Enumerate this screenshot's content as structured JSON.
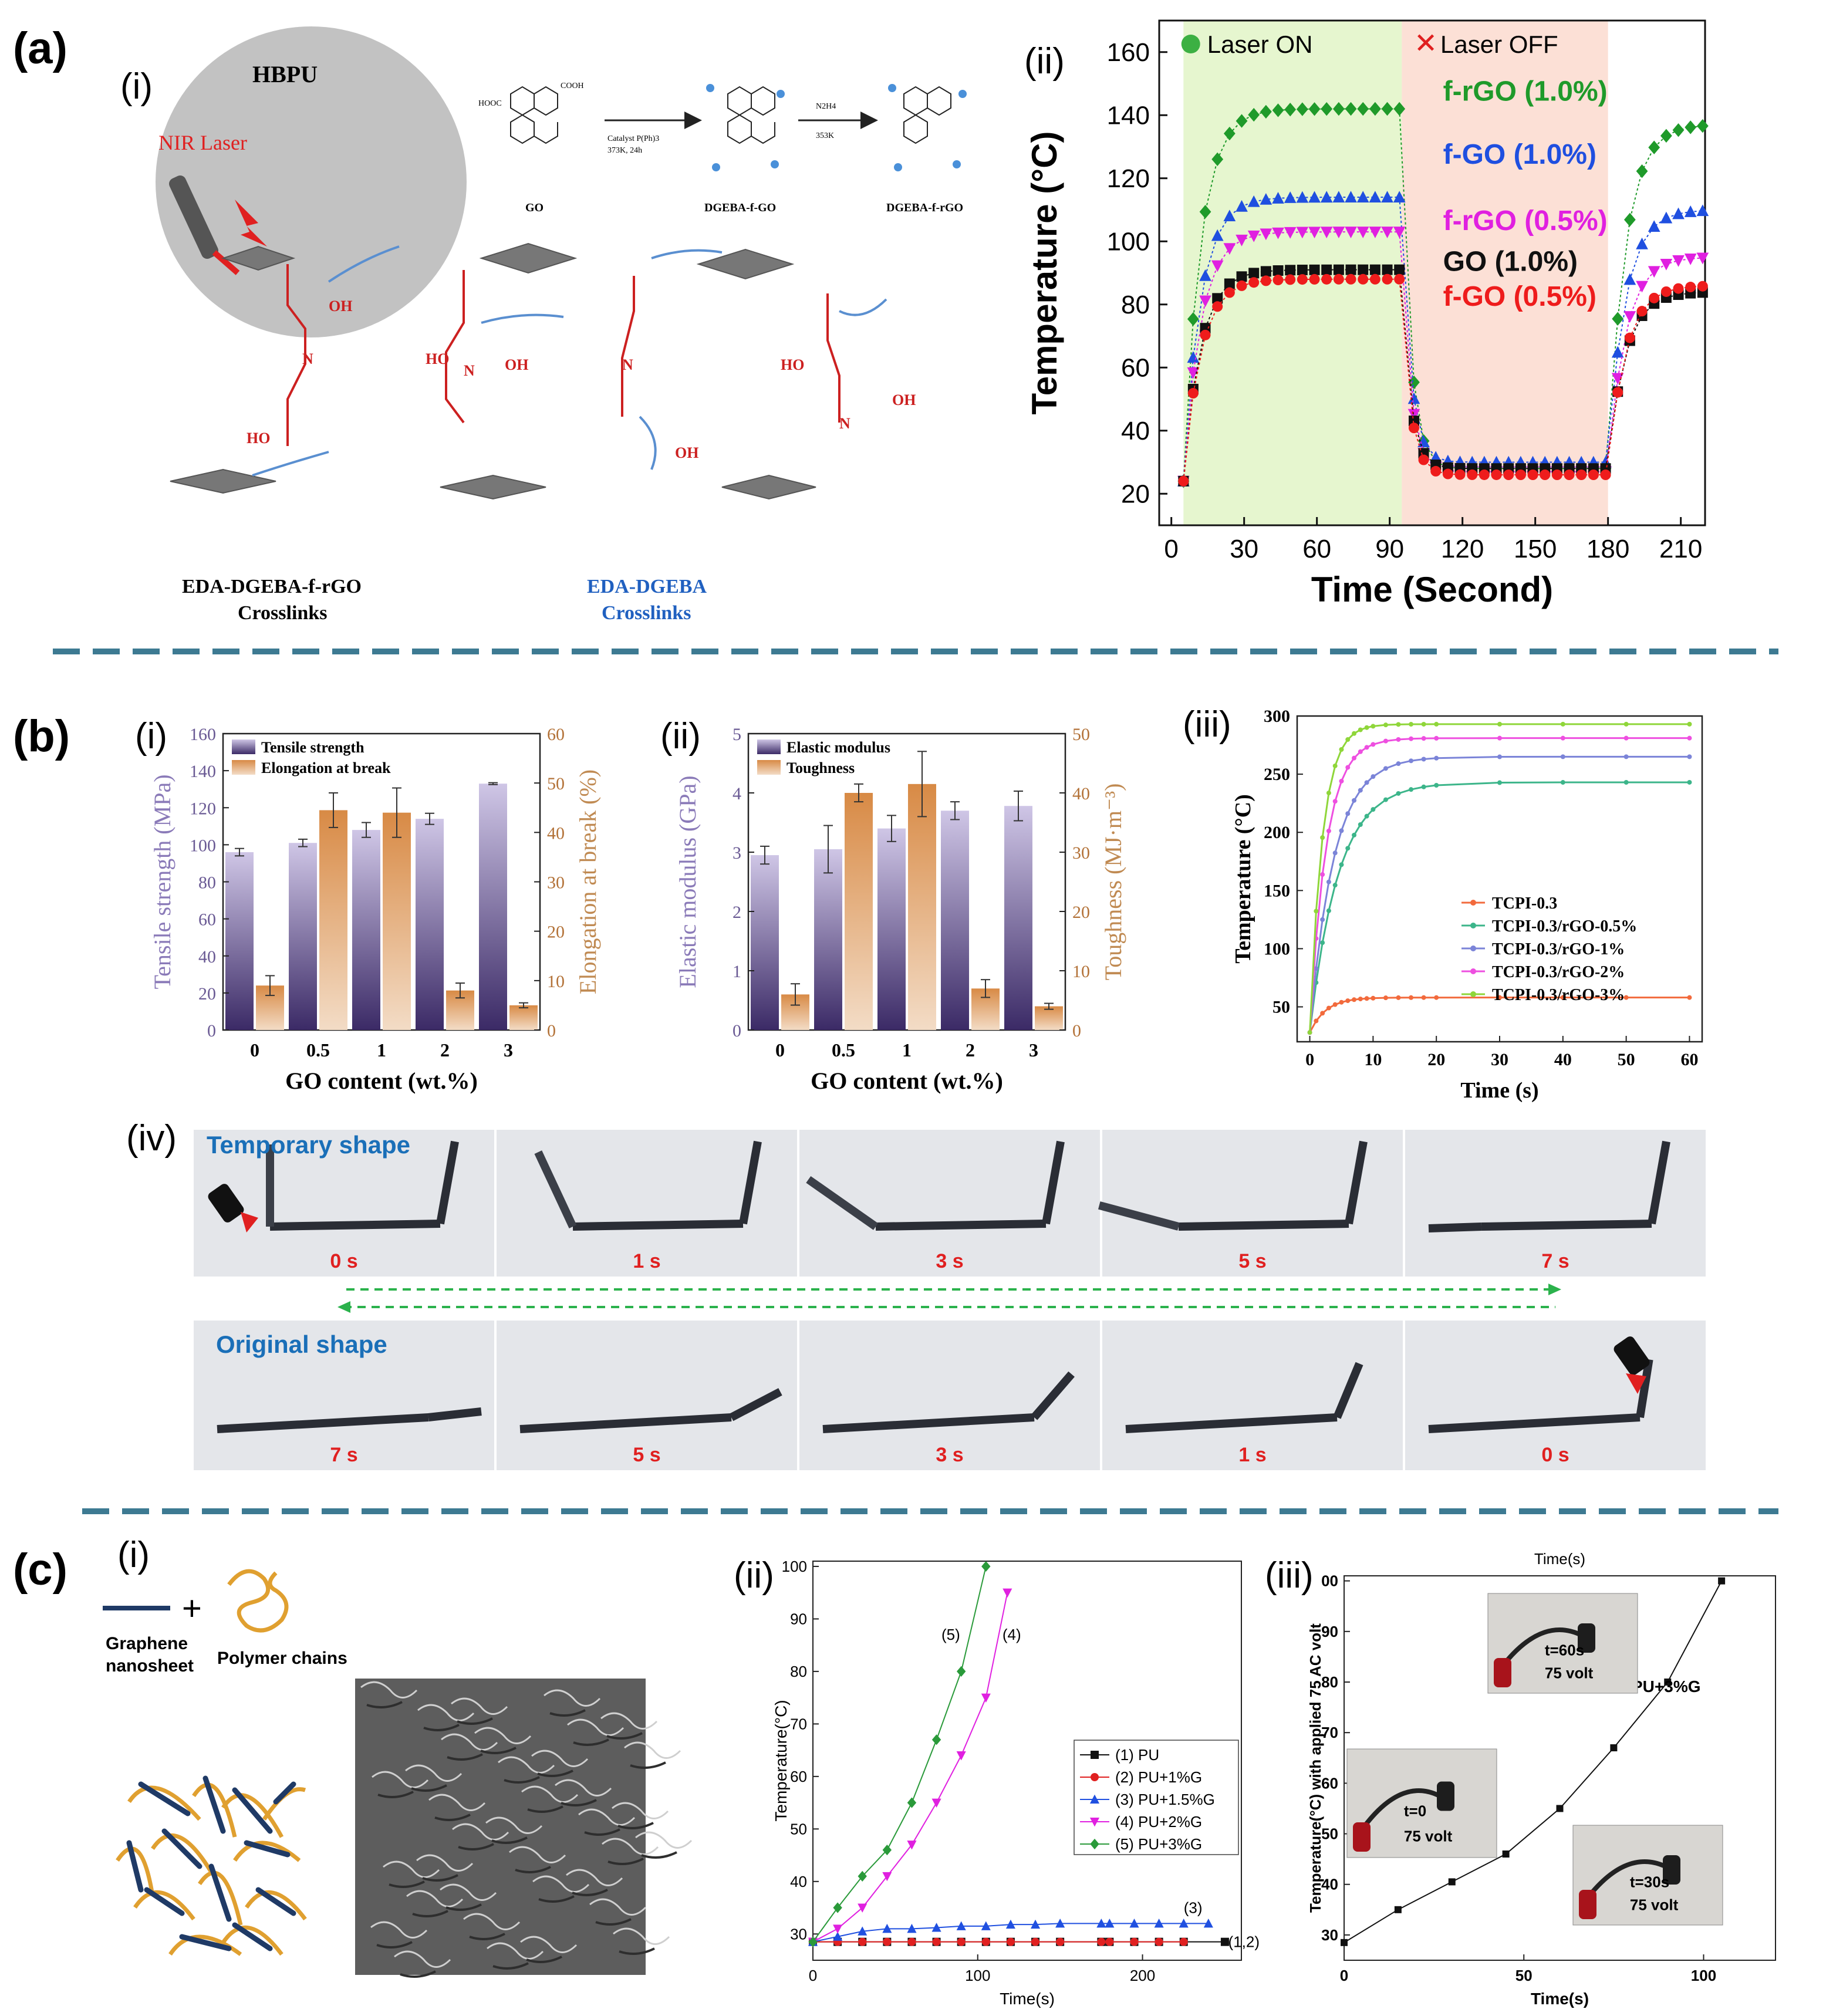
{
  "figure": {
    "panel_labels": {
      "a": "(a)",
      "b": "(b)",
      "c": "(c)"
    },
    "sub_labels": {
      "i": "(i)",
      "ii": "(ii)",
      "iii": "(iii)",
      "iv": "(iv)"
    }
  },
  "colors": {
    "divider": "#3d7a92",
    "purple": "#7a6a9e",
    "orange": "#c8864c",
    "red_text": "#e02020",
    "blue_text": "#1a6fb8"
  },
  "scheme_a": {
    "hbpu": "HBPU",
    "nir": "NIR Laser",
    "go": "GO",
    "dgeba_f_go": "DGEBA-f-GO",
    "dgeba_f_rgo": "DGEBA-f-rGO",
    "catalyst": "Catalyst P(Ph)3",
    "conditions1": "373K, 24h",
    "reagent2": "N2H4",
    "conditions2": "353K",
    "cross1": [
      "EDA-DGEBA-f-rGO",
      "Crosslinks"
    ],
    "cross2": [
      "EDA-DGEBA",
      "Crosslinks"
    ],
    "groups": {
      "oh": "OH",
      "ho": "HO",
      "n": "N",
      "cooh": "COOH",
      "hooc": "HOOC"
    }
  },
  "photos_b": {
    "temporary": "Temporary shape",
    "original": "Original shape",
    "top_times": [
      "0 s",
      "1 s",
      "3 s",
      "5 s",
      "7 s"
    ],
    "bottom_times": [
      "7 s",
      "5 s",
      "3 s",
      "1 s",
      "0 s"
    ]
  },
  "scheme_c": {
    "graphene": [
      "Graphene",
      "nanosheet"
    ],
    "polymer": "Polymer chains",
    "plus": "+"
  },
  "inset_c3": {
    "t60": "t=60s",
    "t0": "t=0",
    "t30": "t=30s",
    "volt": "75 volt"
  },
  "chart_data": [
    {
      "id": "a-ii",
      "type": "line",
      "xlabel": "Time (Second)",
      "ylabel": "Temperature (°C)",
      "xlim": [
        -5,
        220
      ],
      "ylim": [
        10,
        170
      ],
      "xticks": [
        "0",
        "30",
        "60",
        "90",
        "120",
        "150",
        "180",
        "210"
      ],
      "yticks": [
        "20",
        "40",
        "60",
        "80",
        "100",
        "120",
        "140",
        "160"
      ],
      "laser_on": "Laser ON",
      "laser_off": "Laser OFF",
      "on_range": [
        5,
        95
      ],
      "off_range": [
        95,
        180
      ],
      "series": [
        {
          "name": "f-rGO (1.0%)",
          "color": "#1f9a2a",
          "marker": "diamond",
          "plateau": 142,
          "cool": 28,
          "reheat": 137
        },
        {
          "name": "f-GO  (1.0%)",
          "color": "#1f4fe0",
          "marker": "triangle-up",
          "plateau": 114,
          "cool": 30,
          "reheat": 110
        },
        {
          "name": "f-rGO (0.5%)",
          "color": "#e020e0",
          "marker": "triangle-down",
          "plateau": 103,
          "cool": 27,
          "reheat": 95
        },
        {
          "name": "GO  (1.0%)",
          "color": "#111111",
          "marker": "square",
          "plateau": 91,
          "cool": 28,
          "reheat": 84
        },
        {
          "name": "f-GO  (0.5%)",
          "color": "#ee1c1c",
          "marker": "circle",
          "plateau": 88,
          "cool": 26,
          "reheat": 86
        }
      ]
    },
    {
      "id": "b-i",
      "type": "bar",
      "categories": [
        "0",
        "0.5",
        "1",
        "2",
        "3"
      ],
      "xlabel": "GO content (wt.%)",
      "ylabel": "Tensile strength (MPa)",
      "y2label": "Elongation at break (%)",
      "ylim": [
        0,
        160
      ],
      "y2lim": [
        0,
        60
      ],
      "yticks": [
        "0",
        "20",
        "40",
        "60",
        "80",
        "100",
        "120",
        "140",
        "160"
      ],
      "y2ticks": [
        "0",
        "10",
        "20",
        "30",
        "40",
        "50",
        "60"
      ],
      "series": [
        {
          "name": "Tensile strength",
          "axis": "left",
          "values": [
            96,
            101,
            108,
            114,
            133
          ],
          "errors": [
            2,
            2,
            4,
            3,
            0.5
          ]
        },
        {
          "name": "Elongation at break",
          "axis": "right",
          "values": [
            9,
            44.5,
            44,
            8,
            5
          ],
          "errors": [
            2,
            3.5,
            5,
            1.5,
            0.5
          ]
        }
      ]
    },
    {
      "id": "b-ii",
      "type": "bar",
      "categories": [
        "0",
        "0.5",
        "1",
        "2",
        "3"
      ],
      "xlabel": "GO content (wt.%)",
      "ylabel": "Elastic modulus (GPa)",
      "y2label": "Toughness (MJ·m⁻³)",
      "ylim": [
        0,
        5
      ],
      "y2lim": [
        0,
        50
      ],
      "yticks": [
        "0",
        "1",
        "2",
        "3",
        "4",
        "5"
      ],
      "y2ticks": [
        "0",
        "10",
        "20",
        "30",
        "40",
        "50"
      ],
      "series": [
        {
          "name": "Elastic modulus",
          "axis": "left",
          "values": [
            2.95,
            3.05,
            3.4,
            3.7,
            3.78
          ],
          "errors": [
            0.15,
            0.4,
            0.22,
            0.15,
            0.25
          ]
        },
        {
          "name": "Toughness",
          "axis": "right",
          "values": [
            6,
            40,
            41.5,
            7,
            4
          ],
          "errors": [
            1.8,
            1.5,
            5.5,
            1.5,
            0.5
          ]
        }
      ]
    },
    {
      "id": "b-iii",
      "type": "line",
      "xlabel": "Time (s)",
      "ylabel": "Temperature (°C)",
      "xlim": [
        -2,
        62
      ],
      "ylim": [
        20,
        300
      ],
      "xticks": [
        "0",
        "10",
        "20",
        "30",
        "40",
        "50",
        "60"
      ],
      "yticks": [
        "50",
        "100",
        "150",
        "200",
        "250",
        "300"
      ],
      "series": [
        {
          "name": "TCPI-0.3",
          "color": "#f26a3c",
          "plateau": 58,
          "tau": 2.5
        },
        {
          "name": "TCPI-0.3/rGO-0.5%",
          "color": "#3cb58a",
          "plateau": 243,
          "tau": 4.5
        },
        {
          "name": "TCPI-0.3/rGO-1%",
          "color": "#7b84d8",
          "plateau": 265,
          "tau": 3.8
        },
        {
          "name": "TCPI-0.3/rGO-2%",
          "color": "#ee4fe0",
          "plateau": 281,
          "tau": 2.6
        },
        {
          "name": "TCPI-0.3/rGO-3%",
          "color": "#8fd63a",
          "plateau": 293,
          "tau": 2.0
        }
      ]
    },
    {
      "id": "c-ii",
      "type": "line",
      "xlabel": "Time(s)",
      "ylabel": "Temperature(°C)",
      "xlim": [
        0,
        260
      ],
      "ylim": [
        25,
        101
      ],
      "xticks": [
        "0",
        "100",
        "200"
      ],
      "yticks": [
        "30",
        "40",
        "50",
        "60",
        "70",
        "80",
        "90",
        "100"
      ],
      "annotations": [
        "(5)",
        "(4)",
        "(3)",
        "(1,2)"
      ],
      "series": [
        {
          "name": "(1) PU",
          "color": "#111111",
          "x": [
            0,
            15,
            30,
            45,
            60,
            75,
            90,
            105,
            120,
            135,
            150,
            175,
            180,
            195,
            210,
            225,
            250
          ],
          "y": [
            28.5,
            28.5,
            28.5,
            28.5,
            28.5,
            28.5,
            28.5,
            28.5,
            28.5,
            28.5,
            28.5,
            28.5,
            28.5,
            28.5,
            28.5,
            28.5,
            28.5
          ]
        },
        {
          "name": "(2) PU+1%G",
          "color": "#e02020",
          "x": [
            0,
            15,
            30,
            45,
            60,
            75,
            90,
            105,
            120,
            135,
            150,
            175,
            180,
            195,
            210,
            225
          ],
          "y": [
            28.5,
            28.5,
            28.5,
            28.5,
            28.5,
            28.5,
            28.5,
            28.5,
            28.5,
            28.5,
            28.5,
            28.5,
            28.5,
            28.5,
            28.5,
            28.5
          ]
        },
        {
          "name": "(3) PU+1.5%G",
          "color": "#2050e0",
          "x": [
            0,
            15,
            30,
            45,
            60,
            75,
            90,
            105,
            120,
            135,
            150,
            175,
            180,
            195,
            210,
            225,
            240
          ],
          "y": [
            28.5,
            29.5,
            30.5,
            31,
            31,
            31.2,
            31.5,
            31.5,
            31.8,
            31.8,
            32,
            32,
            32,
            32,
            32,
            32,
            32
          ]
        },
        {
          "name": "(4) PU+2%G",
          "color": "#e020e0",
          "x": [
            0,
            15,
            30,
            45,
            60,
            75,
            90,
            105,
            118
          ],
          "y": [
            28.5,
            31,
            35,
            41,
            47,
            55,
            64,
            75,
            95
          ]
        },
        {
          "name": "(5) PU+3%G",
          "color": "#2a9a3a",
          "x": [
            0,
            15,
            30,
            45,
            60,
            75,
            90,
            105
          ],
          "y": [
            28.5,
            35,
            41,
            46,
            55,
            67,
            80,
            100
          ]
        }
      ]
    },
    {
      "id": "c-iii",
      "type": "line",
      "title": "Time(s)",
      "xlabel": "Time(s)",
      "ylabel": "Temperature(°C) with applied 75 AC volt",
      "series_label": "PU+3%G",
      "xlim": [
        0,
        120
      ],
      "ylim": [
        25,
        101
      ],
      "xticks": [
        "0",
        "50",
        "100"
      ],
      "yticks": [
        "30",
        "40",
        "50",
        "60",
        "70",
        "80",
        "90",
        "00"
      ],
      "series": [
        {
          "name": "PU+3%G",
          "color": "#111111",
          "x": [
            0,
            15,
            30,
            45,
            60,
            75,
            90,
            105
          ],
          "y": [
            28.5,
            35,
            40.5,
            46,
            55,
            67,
            80,
            100
          ]
        }
      ]
    }
  ]
}
